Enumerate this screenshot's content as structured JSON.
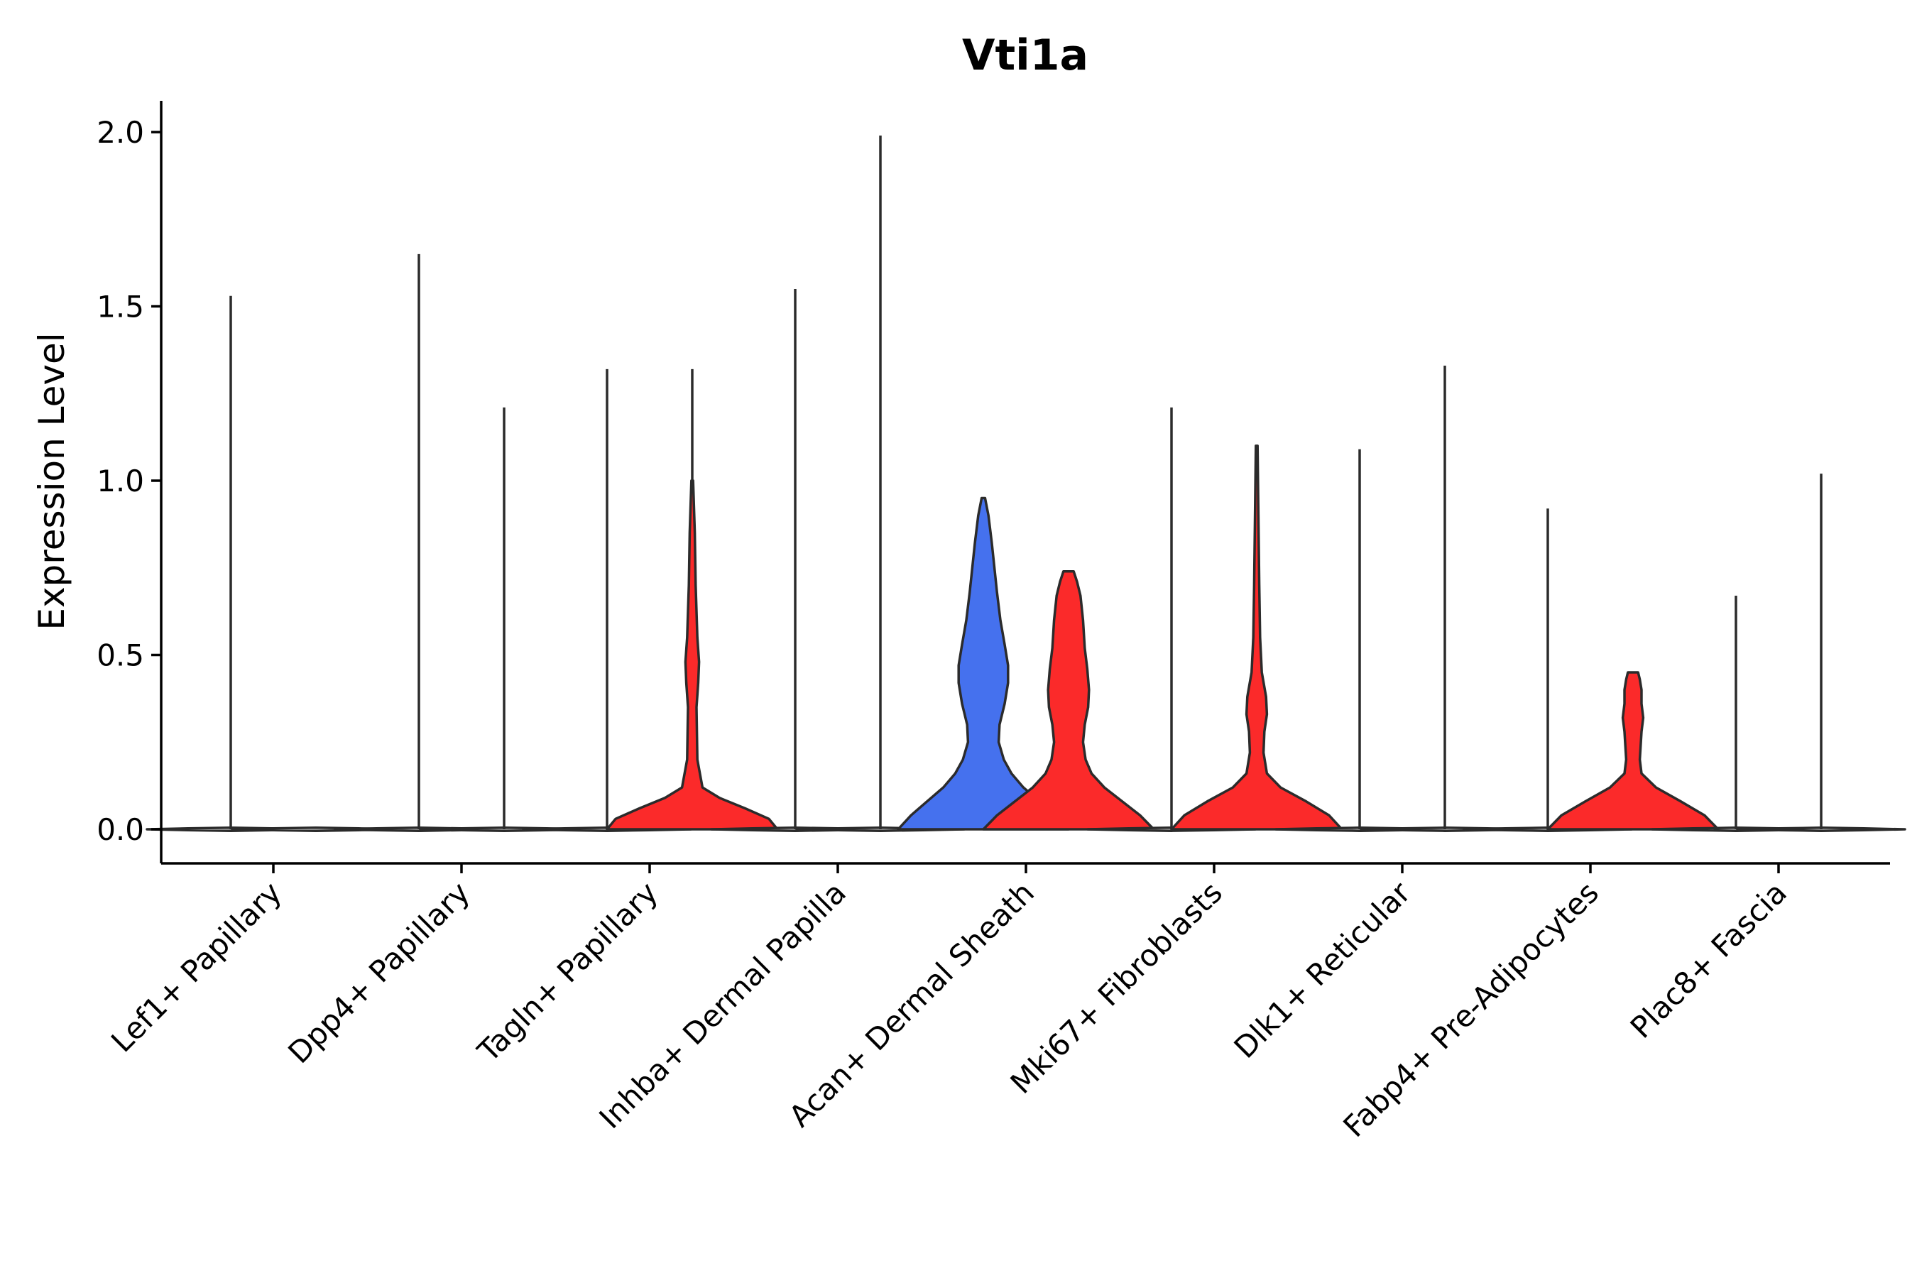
{
  "chart_data": {
    "type": "violin",
    "title": "Vti1a",
    "xlabel": "",
    "ylabel": "Expression Level",
    "ylim": [
      -0.05,
      2.1
    ],
    "yticks": [
      0.0,
      0.5,
      1.0,
      1.5,
      2.0
    ],
    "ytick_labels": [
      "0.0",
      "0.5",
      "1.0",
      "1.5",
      "2.0"
    ],
    "grid": false,
    "legend": "none",
    "colors": {
      "flat": "#f2f2f2",
      "blue": "#4571ee",
      "red": "#fb2a2a",
      "outline": "#2b2b2b"
    },
    "groups": [
      {
        "label": "Lef1+ Papillary",
        "split": [
          {
            "max": 1.53,
            "color": "flat",
            "profile": []
          },
          {
            "max": 0.0,
            "color": "flat",
            "profile": []
          }
        ]
      },
      {
        "label": "Dpp4+ Papillary",
        "split": [
          {
            "max": 1.65,
            "color": "flat",
            "profile": []
          },
          {
            "max": 1.21,
            "color": "flat",
            "profile": []
          }
        ]
      },
      {
        "label": "Tagln+ Papillary",
        "split": [
          {
            "max": 1.32,
            "color": "flat",
            "profile": []
          },
          {
            "max": 1.32,
            "color": "red",
            "profile": [
              [
                0,
                1.0
              ],
              [
                0.03,
                0.9
              ],
              [
                0.06,
                0.62
              ],
              [
                0.09,
                0.32
              ],
              [
                0.12,
                0.12
              ],
              [
                0.2,
                0.06
              ],
              [
                0.35,
                0.05
              ],
              [
                0.42,
                0.07
              ],
              [
                0.48,
                0.08
              ],
              [
                0.55,
                0.06
              ],
              [
                0.7,
                0.04
              ],
              [
                0.85,
                0.03
              ],
              [
                1.0,
                0.01
              ]
            ]
          }
        ]
      },
      {
        "label": "Inhba+ Dermal Papilla",
        "split": [
          {
            "max": 1.55,
            "color": "flat",
            "profile": []
          },
          {
            "max": 1.99,
            "color": "flat",
            "profile": []
          }
        ]
      },
      {
        "label": "Acan+ Dermal Sheath",
        "split": [
          {
            "max": 0.95,
            "color": "blue",
            "profile": [
              [
                0,
                1.0
              ],
              [
                0.04,
                0.85
              ],
              [
                0.08,
                0.66
              ],
              [
                0.12,
                0.47
              ],
              [
                0.16,
                0.33
              ],
              [
                0.2,
                0.24
              ],
              [
                0.25,
                0.18
              ],
              [
                0.3,
                0.19
              ],
              [
                0.36,
                0.25
              ],
              [
                0.42,
                0.29
              ],
              [
                0.47,
                0.29
              ],
              [
                0.53,
                0.25
              ],
              [
                0.6,
                0.2
              ],
              [
                0.68,
                0.16
              ],
              [
                0.75,
                0.13
              ],
              [
                0.82,
                0.1
              ],
              [
                0.9,
                0.06
              ],
              [
                0.95,
                0.02
              ]
            ]
          },
          {
            "max": 0.74,
            "color": "red",
            "profile": [
              [
                0,
                1.0
              ],
              [
                0.04,
                0.84
              ],
              [
                0.08,
                0.63
              ],
              [
                0.12,
                0.42
              ],
              [
                0.16,
                0.27
              ],
              [
                0.2,
                0.2
              ],
              [
                0.25,
                0.17
              ],
              [
                0.3,
                0.19
              ],
              [
                0.35,
                0.23
              ],
              [
                0.4,
                0.24
              ],
              [
                0.46,
                0.22
              ],
              [
                0.52,
                0.19
              ],
              [
                0.6,
                0.17
              ],
              [
                0.67,
                0.14
              ],
              [
                0.71,
                0.1
              ],
              [
                0.74,
                0.06
              ]
            ]
          }
        ]
      },
      {
        "label": "Mki67+ Fibroblasts",
        "split": [
          {
            "max": 1.21,
            "color": "flat",
            "profile": []
          },
          {
            "max": 1.1,
            "color": "red",
            "profile": [
              [
                0,
                1.0
              ],
              [
                0.04,
                0.85
              ],
              [
                0.08,
                0.58
              ],
              [
                0.12,
                0.28
              ],
              [
                0.16,
                0.12
              ],
              [
                0.22,
                0.08
              ],
              [
                0.28,
                0.09
              ],
              [
                0.33,
                0.12
              ],
              [
                0.38,
                0.11
              ],
              [
                0.45,
                0.06
              ],
              [
                0.55,
                0.04
              ],
              [
                0.7,
                0.03
              ],
              [
                0.9,
                0.02
              ],
              [
                1.1,
                0.01
              ]
            ]
          }
        ]
      },
      {
        "label": "Dlk1+ Reticular",
        "split": [
          {
            "max": 1.09,
            "color": "flat",
            "profile": []
          },
          {
            "max": 1.33,
            "color": "flat",
            "profile": []
          }
        ]
      },
      {
        "label": "Fabp4+ Pre-Adipocytes",
        "split": [
          {
            "max": 0.92,
            "color": "flat",
            "profile": []
          },
          {
            "max": 0.45,
            "color": "red",
            "profile": [
              [
                0,
                1.0
              ],
              [
                0.04,
                0.84
              ],
              [
                0.08,
                0.56
              ],
              [
                0.12,
                0.27
              ],
              [
                0.16,
                0.1
              ],
              [
                0.2,
                0.08
              ],
              [
                0.24,
                0.09
              ],
              [
                0.28,
                0.1
              ],
              [
                0.32,
                0.12
              ],
              [
                0.36,
                0.1
              ],
              [
                0.4,
                0.1
              ],
              [
                0.43,
                0.08
              ],
              [
                0.45,
                0.06
              ]
            ]
          }
        ]
      },
      {
        "label": "Plac8+ Fascia",
        "split": [
          {
            "max": 0.67,
            "color": "flat",
            "profile": []
          },
          {
            "max": 1.02,
            "color": "flat",
            "profile": []
          }
        ]
      }
    ]
  }
}
